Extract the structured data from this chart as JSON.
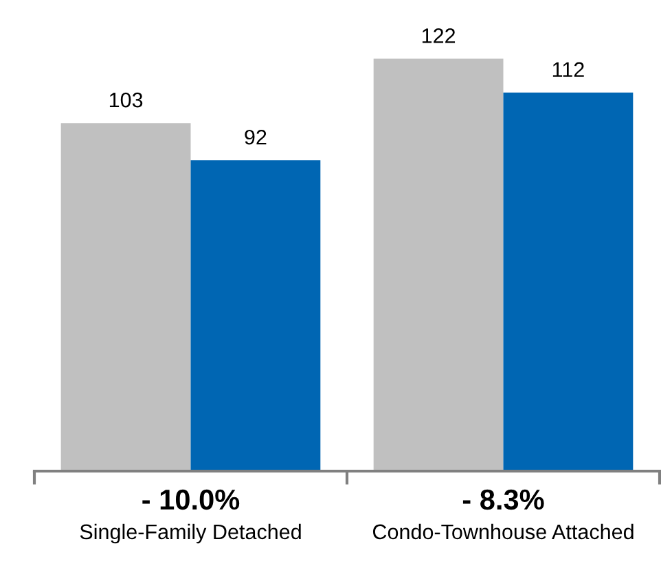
{
  "chart_data": {
    "type": "bar",
    "categories": [
      "Single-Family Detached",
      "Condo-Townhouse Attached"
    ],
    "series": [
      {
        "color": "#c0c0c0",
        "values": [
          103,
          122
        ]
      },
      {
        "color": "#0066b3",
        "values": [
          92,
          112
        ]
      }
    ],
    "data_labels": true,
    "grid": false,
    "tick_labels": "x",
    "annotations": [
      "- 10.0%",
      "- 8.3%"
    ]
  }
}
